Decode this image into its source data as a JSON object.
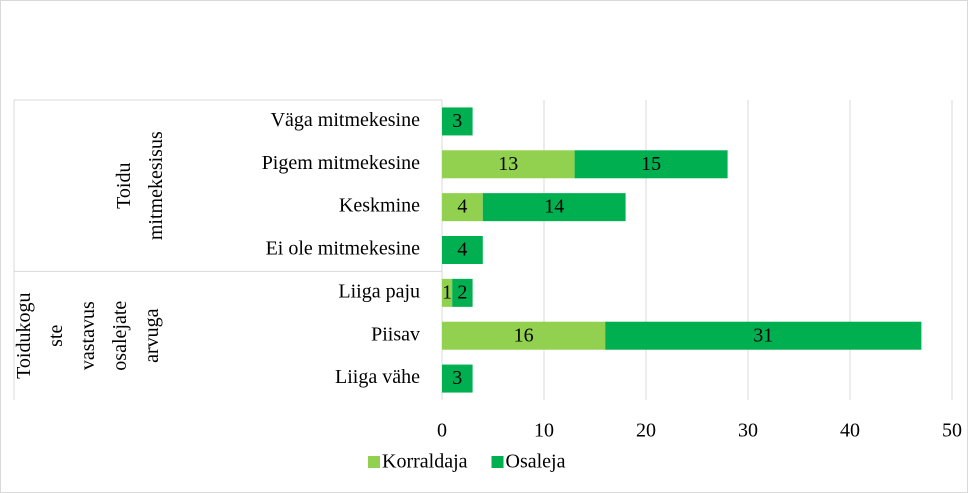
{
  "chart_data": {
    "type": "stacked_bar_horizontal",
    "groups": [
      {
        "label": "Toidu mitmekesisus",
        "categories": [
          0,
          1,
          2,
          3
        ]
      },
      {
        "label": "Toidukoguste vastavus osalejate arvuga",
        "categories": [
          4,
          5,
          6
        ]
      }
    ],
    "categories": [
      "Väga mitmekesine",
      "Pigem mitmekesine",
      "Keskmine",
      "Ei ole mitmekesine",
      "Liiga paju",
      "Piisav",
      "Liiga vähe"
    ],
    "series": [
      {
        "name": "Korraldaja",
        "color": "#92d050",
        "values": [
          null,
          13,
          4,
          null,
          1,
          16,
          null
        ]
      },
      {
        "name": "Osaleja",
        "color": "#00b050",
        "values": [
          3,
          15,
          14,
          4,
          2,
          31,
          3
        ]
      }
    ],
    "xlim": [
      0,
      50
    ],
    "xticks": [
      0,
      10,
      20,
      30,
      40,
      50
    ],
    "grid": true,
    "legend": "bottom"
  }
}
